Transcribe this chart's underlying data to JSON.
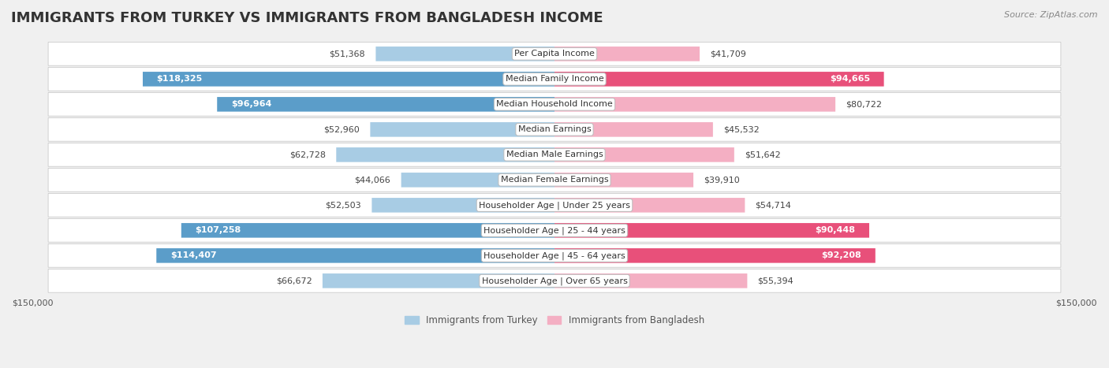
{
  "title": "IMMIGRANTS FROM TURKEY VS IMMIGRANTS FROM BANGLADESH INCOME",
  "source": "Source: ZipAtlas.com",
  "categories": [
    "Per Capita Income",
    "Median Family Income",
    "Median Household Income",
    "Median Earnings",
    "Median Male Earnings",
    "Median Female Earnings",
    "Householder Age | Under 25 years",
    "Householder Age | 25 - 44 years",
    "Householder Age | 45 - 64 years",
    "Householder Age | Over 65 years"
  ],
  "turkey_values": [
    51368,
    118325,
    96964,
    52960,
    62728,
    44066,
    52503,
    107258,
    114407,
    66672
  ],
  "bangladesh_values": [
    41709,
    94665,
    80722,
    45532,
    51642,
    39910,
    54714,
    90448,
    92208,
    55394
  ],
  "turkey_color_light": "#a8cce4",
  "turkey_color_dark": "#5b9dc9",
  "bangladesh_color_light": "#f4afc3",
  "bangladesh_color_dark": "#e8507a",
  "turkey_label": "Immigrants from Turkey",
  "bangladesh_label": "Immigrants from Bangladesh",
  "max_value": 150000,
  "bg_color": "#f0f0f0",
  "row_bg_color": "#ffffff",
  "title_fontsize": 13,
  "label_fontsize": 8,
  "value_fontsize": 8,
  "source_fontsize": 8,
  "dark_threshold": 90000
}
